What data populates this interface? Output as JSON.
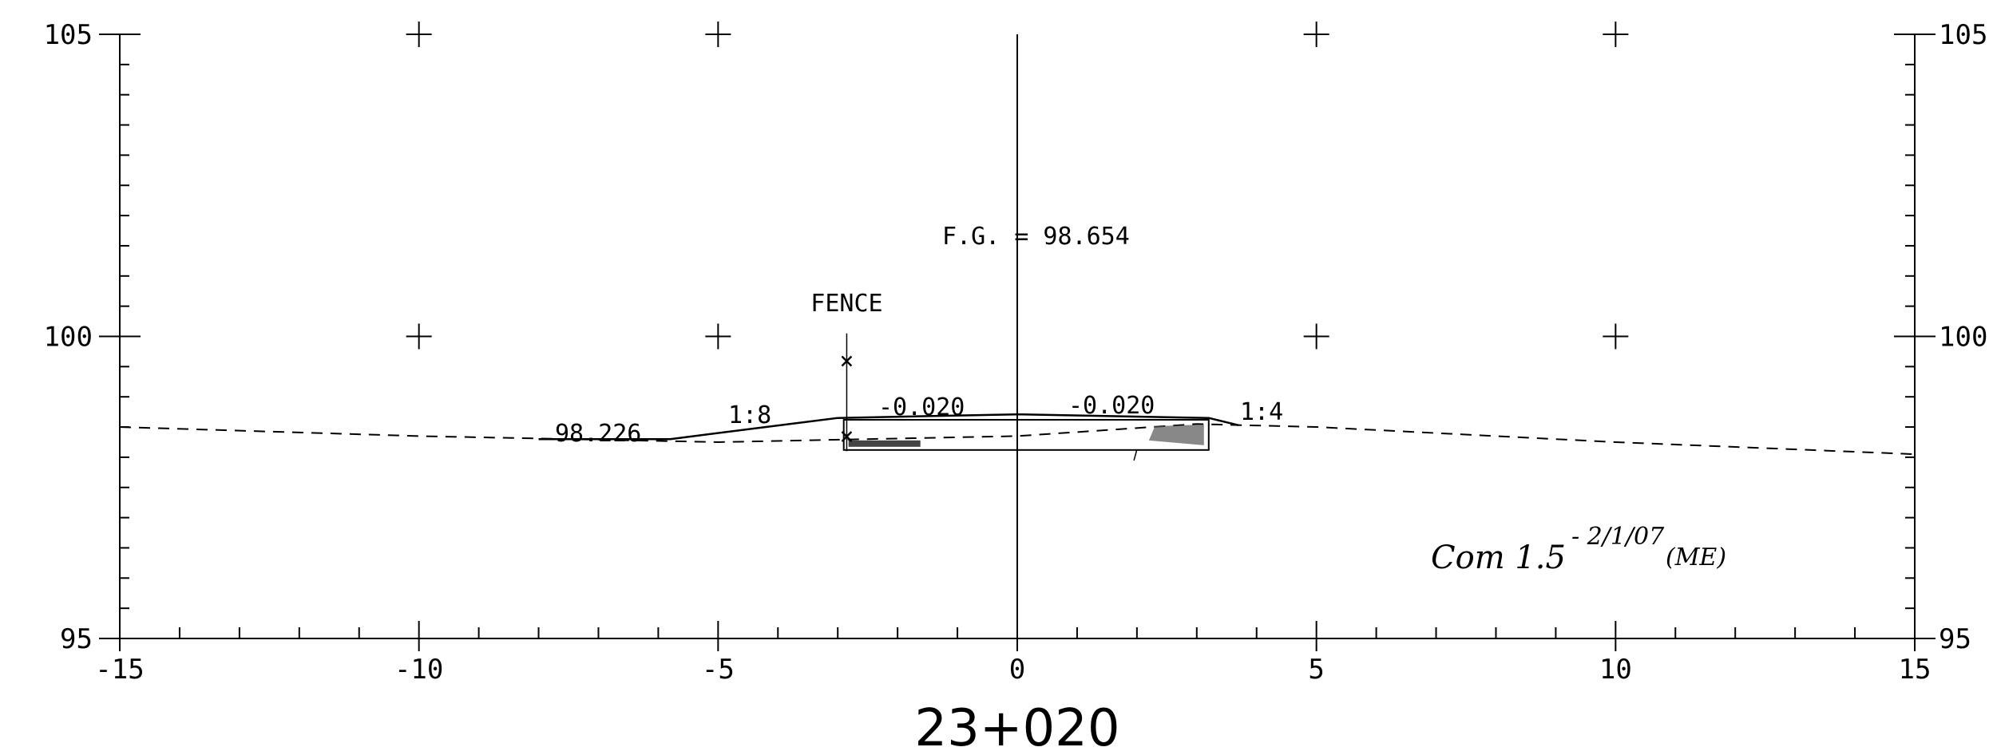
{
  "chart_data": {
    "type": "cross-section",
    "x_axis": {
      "min": -15,
      "max": 15,
      "tick_labels": [
        "-15",
        "-10",
        "-5",
        "0",
        "5",
        "10",
        "15"
      ]
    },
    "y_axis": {
      "min": 95,
      "max": 105,
      "tick_labels": [
        "105",
        "100",
        "95"
      ]
    },
    "grid_crosses": [
      [
        -10,
        105
      ],
      [
        -5,
        105
      ],
      [
        5,
        105
      ],
      [
        10,
        105
      ],
      [
        -10,
        100
      ],
      [
        -5,
        100
      ],
      [
        5,
        100
      ],
      [
        10,
        100
      ]
    ],
    "existing_ground": [
      [
        -15,
        98.5
      ],
      [
        -10,
        98.35
      ],
      [
        -5,
        98.25
      ],
      [
        0,
        98.35
      ],
      [
        3,
        98.55
      ],
      [
        5,
        98.5
      ],
      [
        10,
        98.25
      ],
      [
        15,
        98.05
      ]
    ],
    "design_surface": [
      [
        -8,
        98.3
      ],
      [
        -5.8,
        98.3
      ],
      [
        -3,
        98.65
      ],
      [
        0,
        98.71
      ],
      [
        3.2,
        98.65
      ],
      [
        3.7,
        98.53
      ]
    ],
    "pavement_box": {
      "x_start": -2.9,
      "x_end": 3.2,
      "top": 98.62,
      "bottom": 98.12
    },
    "fence_x": -2.85,
    "labels": {
      "fg": "F.G. = 98.654",
      "fence": "FENCE",
      "left_elevation": "98.226",
      "left_slope": "1:8",
      "left_grade": "-0.020",
      "right_grade": "-0.020",
      "right_slope": "1:4",
      "station": "23+020"
    },
    "handwritten": {
      "note": "Com 1.5",
      "date": "- 2/1/07",
      "initials": "(ME)"
    }
  }
}
